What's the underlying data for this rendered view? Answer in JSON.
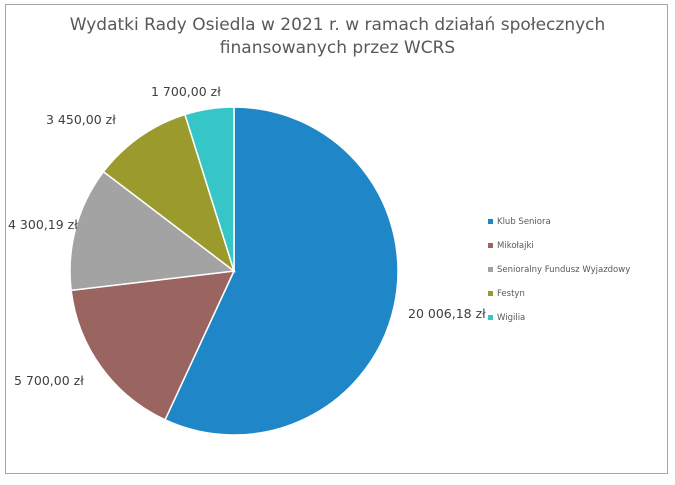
{
  "chart_data": {
    "type": "pie",
    "title": [
      "Wydatki Rady Osiedla w 2021 r. w ramach działań społecznych",
      "finansowanych przez WCRS"
    ],
    "categories": [
      "Klub Seniora",
      "Mikołajki",
      "Senioralny Fundusz Wyjazdowy",
      "Festyn",
      "Wigilia"
    ],
    "values": [
      20006.18,
      5700.0,
      4300.19,
      3450.0,
      1700.0
    ],
    "data_labels": [
      "20 006,18 zł",
      "5 700,00 zł",
      "4 300,19 zł",
      "3 450,00 zł",
      "1 700,00 zł"
    ],
    "colors": [
      "#1f87c8",
      "#9a6460",
      "#a3a3a3",
      "#9b9a2d",
      "#37c6c8"
    ],
    "legend_position": "right"
  }
}
